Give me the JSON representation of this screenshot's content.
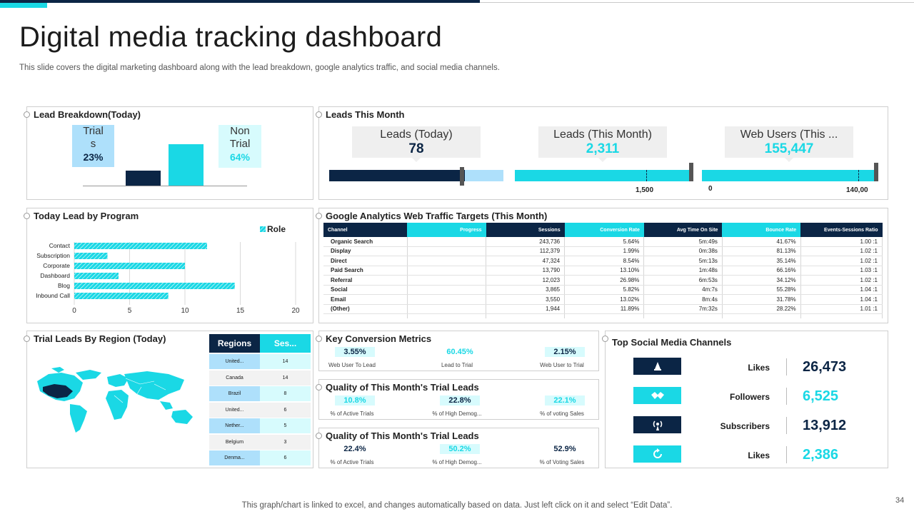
{
  "page": {
    "title": "Digital media tracking dashboard",
    "subtitle": "This slide covers the digital marketing dashboard along with the lead breakdown, google analytics traffic, and social media channels.",
    "footer": "This graph/chart is linked to excel,  and changes automatically based on data. Just left click on it and select “Edit Data”.",
    "page_number": "34"
  },
  "colors": {
    "navy": "#0b2545",
    "cyan": "#1ad8e5",
    "light_blue": "#aee0fb",
    "light_cyan": "#d7fbfd"
  },
  "lead_breakdown": {
    "title": "Lead Breakdown(Today)",
    "trials": {
      "label_line1": "Trial",
      "label_line2": "s",
      "pct": "23%",
      "value": 23
    },
    "non_trial": {
      "label_line1": "Non",
      "label_line2": "Trial",
      "pct": "64%",
      "value": 64
    }
  },
  "leads_this_month": {
    "title": "Leads This Month",
    "kpis": [
      {
        "label": "Leads (Today)",
        "value": "78"
      },
      {
        "label": "Leads (This Month)",
        "value": "2,311"
      },
      {
        "label": "Web Users (This ...",
        "value": "155,447"
      }
    ],
    "gauges": [
      {
        "fill": 0.78,
        "ticks": []
      },
      {
        "fill": 1.0,
        "ticks": [
          "1,500"
        ]
      },
      {
        "fill": 1.0,
        "ticks": [
          "0",
          "140,00"
        ]
      }
    ]
  },
  "program_chart": {
    "title": "Today Lead by Program",
    "chart_data": {
      "type": "bar",
      "orientation": "horizontal",
      "categories": [
        "Contact",
        "Subscription",
        "Corporate",
        "Dashboard",
        "Blog",
        "Inbound Call"
      ],
      "series": [
        {
          "name": "Role",
          "values": [
            12,
            3,
            10,
            4,
            14.5,
            8.5
          ]
        }
      ],
      "xlim": [
        0,
        20
      ],
      "x_ticks": [
        "0",
        "5",
        "10",
        "15",
        "20"
      ],
      "grid": true,
      "legend": "top-right"
    }
  },
  "ga_table": {
    "title": "Google Analytics Web Traffic Targets (This Month)",
    "headers": [
      "Channel",
      "Progress",
      "Sessions",
      "Conversion Rate",
      "Avg Time On Site",
      "Bounce Rate",
      "Events-Sessions Ratio"
    ],
    "rows": [
      [
        "Organic Search",
        "",
        "243,736",
        "5.64%",
        "5m:49s",
        "41.67%",
        "1.00 :1"
      ],
      [
        "Display",
        "",
        "112,379",
        "1.99%",
        "0m:38s",
        "81.13%",
        "1.02 :1"
      ],
      [
        "Direct",
        "",
        "47,324",
        "8.54%",
        "5m:13s",
        "35.14%",
        "1.02 :1"
      ],
      [
        "Paid Search",
        "",
        "13,790",
        "13.10%",
        "1m:48s",
        "66.16%",
        "1.03 :1"
      ],
      [
        "Referral",
        "",
        "12,023",
        "26.98%",
        "6m:53s",
        "34.12%",
        "1.02 :1"
      ],
      [
        "Social",
        "",
        "3,865",
        "5.82%",
        "4m:7s",
        "55.28%",
        "1.04 :1"
      ],
      [
        "Email",
        "",
        "3,550",
        "13.02%",
        "8m:4s",
        "31.78%",
        "1.04 :1"
      ],
      [
        "(Other)",
        "",
        "1,944",
        "11.89%",
        "7m:32s",
        "28.22%",
        "1.01 :1"
      ]
    ]
  },
  "region": {
    "title": "Trial Leads By Region (Today)",
    "headers": [
      "Regions",
      "Ses..."
    ],
    "rows": [
      [
        "United...",
        "14"
      ],
      [
        "Canada",
        "14"
      ],
      [
        "Brazil",
        "8"
      ],
      [
        "United...",
        "6"
      ],
      [
        "Nether...",
        "5"
      ],
      [
        "Belgium",
        "3"
      ],
      [
        "Denma...",
        "6"
      ]
    ]
  },
  "metrics": [
    {
      "title": "Key Conversion Metrics",
      "items": [
        {
          "value": "3.55%",
          "label": "Web User To Lead"
        },
        {
          "value": "60.45%",
          "label": "Lead to Trial"
        },
        {
          "value": "2.15%",
          "label": "Web User to Trial"
        }
      ]
    },
    {
      "title": "Quality of This Month's Trial Leads",
      "items": [
        {
          "value": "10.8%",
          "label": "% of Active Trials"
        },
        {
          "value": "22.8%",
          "label": "% of High Demog..."
        },
        {
          "value": "22.1%",
          "label": "% of voting Sales"
        }
      ]
    },
    {
      "title": "Quality of This Month's Trial Leads",
      "items": [
        {
          "value": "22.4%",
          "label": "% of Active Trials"
        },
        {
          "value": "50.2%",
          "label": "% of High Demog..."
        },
        {
          "value": "52.9%",
          "label": "% of Voting Sales"
        }
      ]
    }
  ],
  "social": {
    "title": "Top Social Media Channels",
    "items": [
      {
        "icon": "bell-icon",
        "label": "Likes",
        "value": "26,473"
      },
      {
        "icon": "handshake-icon",
        "label": "Followers",
        "value": "6,525"
      },
      {
        "icon": "broadcast-icon",
        "label": "Subscribers",
        "value": "13,912"
      },
      {
        "icon": "refresh-icon",
        "label": "Likes",
        "value": "2,386"
      }
    ]
  }
}
